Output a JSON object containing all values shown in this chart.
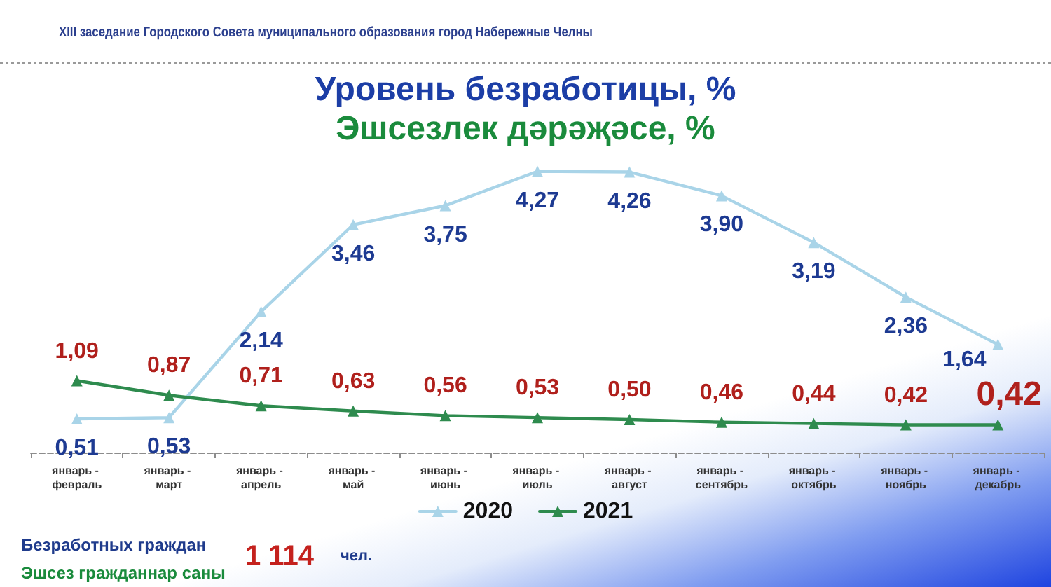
{
  "chart_data": {
    "type": "line",
    "title": "Уровень безработицы, %",
    "subtitle": "Эшсезлек дәрәҗәсе, %",
    "categories": [
      "январь - февраль",
      "январь - март",
      "январь - апрель",
      "январь - май",
      "январь - июнь",
      "январь - июль",
      "январь - август",
      "январь - сентябрь",
      "январь - октябрь",
      "январь - ноябрь",
      "январь - декабрь"
    ],
    "series": [
      {
        "name": "2020",
        "color": "#a9d4e8",
        "values": [
          0.51,
          0.53,
          2.14,
          3.46,
          3.75,
          4.27,
          4.26,
          3.9,
          3.19,
          2.36,
          1.64
        ],
        "value_labels": [
          "0,51",
          "0,53",
          "2,14",
          "3,46",
          "3,75",
          "4,27",
          "4,26",
          "3,90",
          "3,19",
          "2,36",
          "1,64"
        ]
      },
      {
        "name": "2021",
        "color": "#2e8b4e",
        "values": [
          1.09,
          0.87,
          0.71,
          0.63,
          0.56,
          0.53,
          0.5,
          0.46,
          0.44,
          0.42,
          0.42
        ],
        "value_labels": [
          "1,09",
          "0,87",
          "0,71",
          "0,63",
          "0,56",
          "0,53",
          "0,50",
          "0,46",
          "0,44",
          "0,42",
          "0,42"
        ]
      }
    ],
    "marker": "triangle",
    "legend": "bottom",
    "tick_labels": "x",
    "annotations": [
      "XIII заседание Городского Совета муниципального образования город Набережные Челны",
      "Безработных граждан",
      "Эшсез гражданнар саны",
      "1 114",
      "чел."
    ]
  }
}
